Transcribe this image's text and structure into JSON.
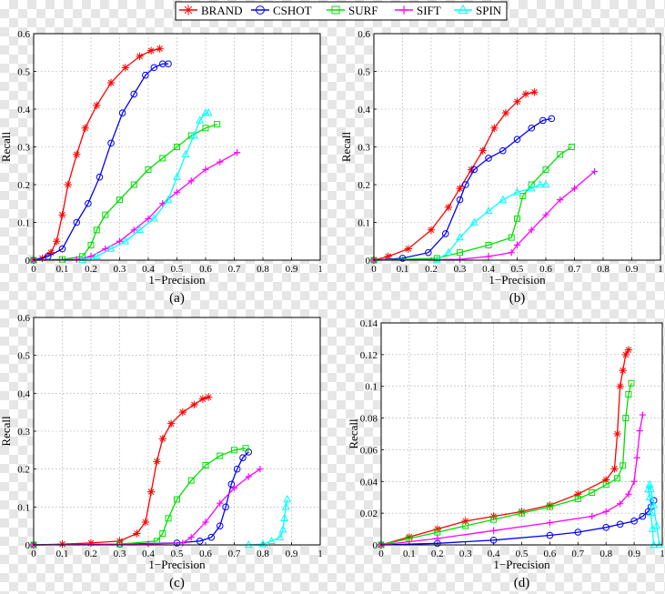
{
  "legend": {
    "entries": [
      {
        "name": "BRAND",
        "color": "#ff0000",
        "marker": "star"
      },
      {
        "name": "CSHOT",
        "color": "#0000ff",
        "marker": "circle"
      },
      {
        "name": "SURF",
        "color": "#00e000",
        "marker": "square"
      },
      {
        "name": "SIFT",
        "color": "#ff00ff",
        "marker": "plus"
      },
      {
        "name": "SPIN",
        "color": "#00ffff",
        "marker": "triangle"
      }
    ]
  },
  "chart_data": [
    {
      "type": "line",
      "panel_label": "(a)",
      "xlabel": "1−Precision",
      "ylabel": "Recall",
      "xlim": [
        0,
        1
      ],
      "ylim": [
        0,
        0.6
      ],
      "xticks": [
        "0",
        "0.1",
        "0.2",
        "0.3",
        "0.4",
        "0.5",
        "0.6",
        "0.7",
        "0.8",
        "0.9",
        "1"
      ],
      "yticks": [
        "0",
        "0.1",
        "0.2",
        "0.3",
        "0.4",
        "0.5",
        "0.6"
      ],
      "grid": true,
      "series": [
        {
          "name": "BRAND",
          "x": [
            0,
            0.03,
            0.06,
            0.08,
            0.1,
            0.12,
            0.15,
            0.18,
            0.22,
            0.27,
            0.32,
            0.37,
            0.41,
            0.44
          ],
          "y": [
            0,
            0.005,
            0.02,
            0.05,
            0.12,
            0.2,
            0.28,
            0.35,
            0.41,
            0.47,
            0.51,
            0.54,
            0.555,
            0.56
          ]
        },
        {
          "name": "CSHOT",
          "x": [
            0,
            0.05,
            0.1,
            0.15,
            0.19,
            0.23,
            0.27,
            0.31,
            0.35,
            0.39,
            0.42,
            0.45,
            0.47
          ],
          "y": [
            0,
            0.01,
            0.03,
            0.1,
            0.15,
            0.22,
            0.31,
            0.39,
            0.44,
            0.49,
            0.51,
            0.52,
            0.52
          ]
        },
        {
          "name": "SURF",
          "x": [
            0,
            0.1,
            0.17,
            0.2,
            0.22,
            0.25,
            0.3,
            0.35,
            0.4,
            0.45,
            0.5,
            0.55,
            0.6,
            0.64
          ],
          "y": [
            0,
            0.002,
            0.01,
            0.04,
            0.08,
            0.12,
            0.16,
            0.2,
            0.24,
            0.27,
            0.3,
            0.33,
            0.35,
            0.36
          ]
        },
        {
          "name": "SIFT",
          "x": [
            0,
            0.15,
            0.2,
            0.25,
            0.3,
            0.35,
            0.4,
            0.45,
            0.5,
            0.55,
            0.6,
            0.65,
            0.71
          ],
          "y": [
            0,
            0.002,
            0.01,
            0.03,
            0.05,
            0.08,
            0.11,
            0.15,
            0.18,
            0.21,
            0.24,
            0.26,
            0.285
          ]
        },
        {
          "name": "SPIN",
          "x": [
            0.17,
            0.22,
            0.27,
            0.32,
            0.37,
            0.42,
            0.47,
            0.5,
            0.53,
            0.56,
            0.58,
            0.6,
            0.61
          ],
          "y": [
            0,
            0.01,
            0.03,
            0.05,
            0.08,
            0.11,
            0.16,
            0.22,
            0.28,
            0.33,
            0.37,
            0.39,
            0.39
          ]
        }
      ]
    },
    {
      "type": "line",
      "panel_label": "(b)",
      "xlabel": "1−Precision",
      "ylabel": "Recall",
      "xlim": [
        0,
        1
      ],
      "ylim": [
        0,
        0.6
      ],
      "xticks": [
        "0",
        "0.1",
        "0.2",
        "0.3",
        "0.4",
        "0.5",
        "0.6",
        "0.7",
        "0.8",
        "0.9",
        "1"
      ],
      "yticks": [
        "0",
        "0.1",
        "0.2",
        "0.3",
        "0.4",
        "0.5",
        "0.6"
      ],
      "grid": true,
      "series": [
        {
          "name": "BRAND",
          "x": [
            0,
            0.05,
            0.12,
            0.2,
            0.26,
            0.3,
            0.34,
            0.38,
            0.42,
            0.46,
            0.5,
            0.53,
            0.56
          ],
          "y": [
            0,
            0.01,
            0.03,
            0.08,
            0.14,
            0.19,
            0.24,
            0.29,
            0.35,
            0.39,
            0.42,
            0.44,
            0.445
          ]
        },
        {
          "name": "CSHOT",
          "x": [
            0,
            0.1,
            0.19,
            0.25,
            0.3,
            0.32,
            0.35,
            0.4,
            0.45,
            0.5,
            0.55,
            0.59,
            0.62
          ],
          "y": [
            0,
            0.005,
            0.02,
            0.07,
            0.16,
            0.2,
            0.24,
            0.27,
            0.29,
            0.32,
            0.35,
            0.37,
            0.375
          ]
        },
        {
          "name": "SURF",
          "x": [
            0,
            0.22,
            0.3,
            0.4,
            0.48,
            0.5,
            0.52,
            0.55,
            0.6,
            0.65,
            0.69
          ],
          "y": [
            0,
            0.005,
            0.02,
            0.04,
            0.06,
            0.11,
            0.17,
            0.2,
            0.24,
            0.28,
            0.3
          ]
        },
        {
          "name": "SIFT",
          "x": [
            0,
            0.3,
            0.4,
            0.48,
            0.5,
            0.55,
            0.6,
            0.65,
            0.7,
            0.77
          ],
          "y": [
            0,
            0.002,
            0.01,
            0.02,
            0.04,
            0.08,
            0.12,
            0.16,
            0.19,
            0.235
          ]
        },
        {
          "name": "SPIN",
          "x": [
            0.22,
            0.26,
            0.3,
            0.35,
            0.4,
            0.45,
            0.5,
            0.55,
            0.58,
            0.6
          ],
          "y": [
            0,
            0.02,
            0.06,
            0.1,
            0.13,
            0.16,
            0.18,
            0.19,
            0.2,
            0.2
          ]
        }
      ]
    },
    {
      "type": "line",
      "panel_label": "(c)",
      "xlabel": "1−Precision",
      "ylabel": "Recall",
      "xlim": [
        0,
        1
      ],
      "ylim": [
        0,
        0.6
      ],
      "xticks": [
        "0",
        "0.1",
        "0.2",
        "0.3",
        "0.4",
        "0.5",
        "0.6",
        "0.7",
        "0.8",
        "0.9",
        "1"
      ],
      "yticks": [
        "0",
        "0.1",
        "0.2",
        "0.3",
        "0.4",
        "0.5",
        "0.6"
      ],
      "grid": true,
      "series": [
        {
          "name": "BRAND",
          "x": [
            0,
            0.1,
            0.2,
            0.3,
            0.36,
            0.39,
            0.41,
            0.43,
            0.45,
            0.48,
            0.52,
            0.56,
            0.59,
            0.61
          ],
          "y": [
            0,
            0.002,
            0.005,
            0.01,
            0.03,
            0.06,
            0.14,
            0.22,
            0.28,
            0.32,
            0.35,
            0.37,
            0.385,
            0.39
          ]
        },
        {
          "name": "CSHOT",
          "x": [
            0,
            0.3,
            0.5,
            0.58,
            0.62,
            0.65,
            0.67,
            0.69,
            0.71,
            0.73,
            0.75
          ],
          "y": [
            0,
            0.002,
            0.005,
            0.01,
            0.02,
            0.05,
            0.1,
            0.16,
            0.2,
            0.23,
            0.245
          ]
        },
        {
          "name": "SURF",
          "x": [
            0,
            0.3,
            0.43,
            0.45,
            0.47,
            0.5,
            0.55,
            0.6,
            0.65,
            0.7,
            0.74
          ],
          "y": [
            0,
            0.002,
            0.01,
            0.03,
            0.07,
            0.12,
            0.17,
            0.21,
            0.235,
            0.25,
            0.255
          ]
        },
        {
          "name": "SIFT",
          "x": [
            0,
            0.4,
            0.52,
            0.55,
            0.6,
            0.65,
            0.7,
            0.75,
            0.79
          ],
          "y": [
            0,
            0.002,
            0.005,
            0.02,
            0.06,
            0.11,
            0.15,
            0.18,
            0.2
          ]
        },
        {
          "name": "SPIN",
          "x": [
            0.75,
            0.8,
            0.83,
            0.86,
            0.87,
            0.875,
            0.88,
            0.885
          ],
          "y": [
            0,
            0.002,
            0.01,
            0.02,
            0.04,
            0.07,
            0.1,
            0.12
          ]
        }
      ]
    },
    {
      "type": "line",
      "panel_label": "(d)",
      "xlabel": "1−Precision",
      "ylabel": "Recall",
      "xlim": [
        0,
        1
      ],
      "ylim": [
        0,
        0.14
      ],
      "xticks": [
        "0",
        "0.1",
        "0.2",
        "0.3",
        "0.4",
        "0.5",
        "0.6",
        "0.7",
        "0.8",
        "0.9",
        "1"
      ],
      "yticks": [
        "0",
        "0.02",
        "0.04",
        "0.06",
        "0.08",
        "0.1",
        "0.12",
        "0.14"
      ],
      "grid": true,
      "series": [
        {
          "name": "BRAND",
          "x": [
            0,
            0.1,
            0.2,
            0.3,
            0.4,
            0.5,
            0.6,
            0.7,
            0.8,
            0.83,
            0.84,
            0.85,
            0.86,
            0.87,
            0.88
          ],
          "y": [
            0,
            0.005,
            0.01,
            0.015,
            0.018,
            0.021,
            0.025,
            0.032,
            0.041,
            0.048,
            0.07,
            0.1,
            0.11,
            0.12,
            0.123
          ]
        },
        {
          "name": "CSHOT",
          "x": [
            0,
            0.2,
            0.4,
            0.6,
            0.7,
            0.8,
            0.85,
            0.9,
            0.93,
            0.95,
            0.96,
            0.97
          ],
          "y": [
            0,
            0.001,
            0.003,
            0.006,
            0.008,
            0.011,
            0.013,
            0.015,
            0.018,
            0.021,
            0.024,
            0.028
          ]
        },
        {
          "name": "SURF",
          "x": [
            0,
            0.1,
            0.2,
            0.3,
            0.4,
            0.5,
            0.6,
            0.7,
            0.75,
            0.8,
            0.84,
            0.86,
            0.87,
            0.88,
            0.89
          ],
          "y": [
            0,
            0.004,
            0.008,
            0.012,
            0.016,
            0.02,
            0.024,
            0.029,
            0.033,
            0.038,
            0.042,
            0.05,
            0.08,
            0.095,
            0.102
          ]
        },
        {
          "name": "SIFT",
          "x": [
            0,
            0.2,
            0.4,
            0.6,
            0.75,
            0.8,
            0.85,
            0.88,
            0.9,
            0.91,
            0.92,
            0.93
          ],
          "y": [
            0,
            0.004,
            0.009,
            0.014,
            0.018,
            0.021,
            0.026,
            0.032,
            0.04,
            0.055,
            0.072,
            0.082
          ]
        },
        {
          "name": "SPIN",
          "x": [
            0.97,
            0.965,
            0.96,
            0.955,
            0.95,
            0.955,
            0.96,
            0.97,
            0.98,
            0.99
          ],
          "y": [
            0,
            0.01,
            0.02,
            0.03,
            0.035,
            0.038,
            0.035,
            0.025,
            0.012,
            0
          ]
        }
      ]
    }
  ]
}
